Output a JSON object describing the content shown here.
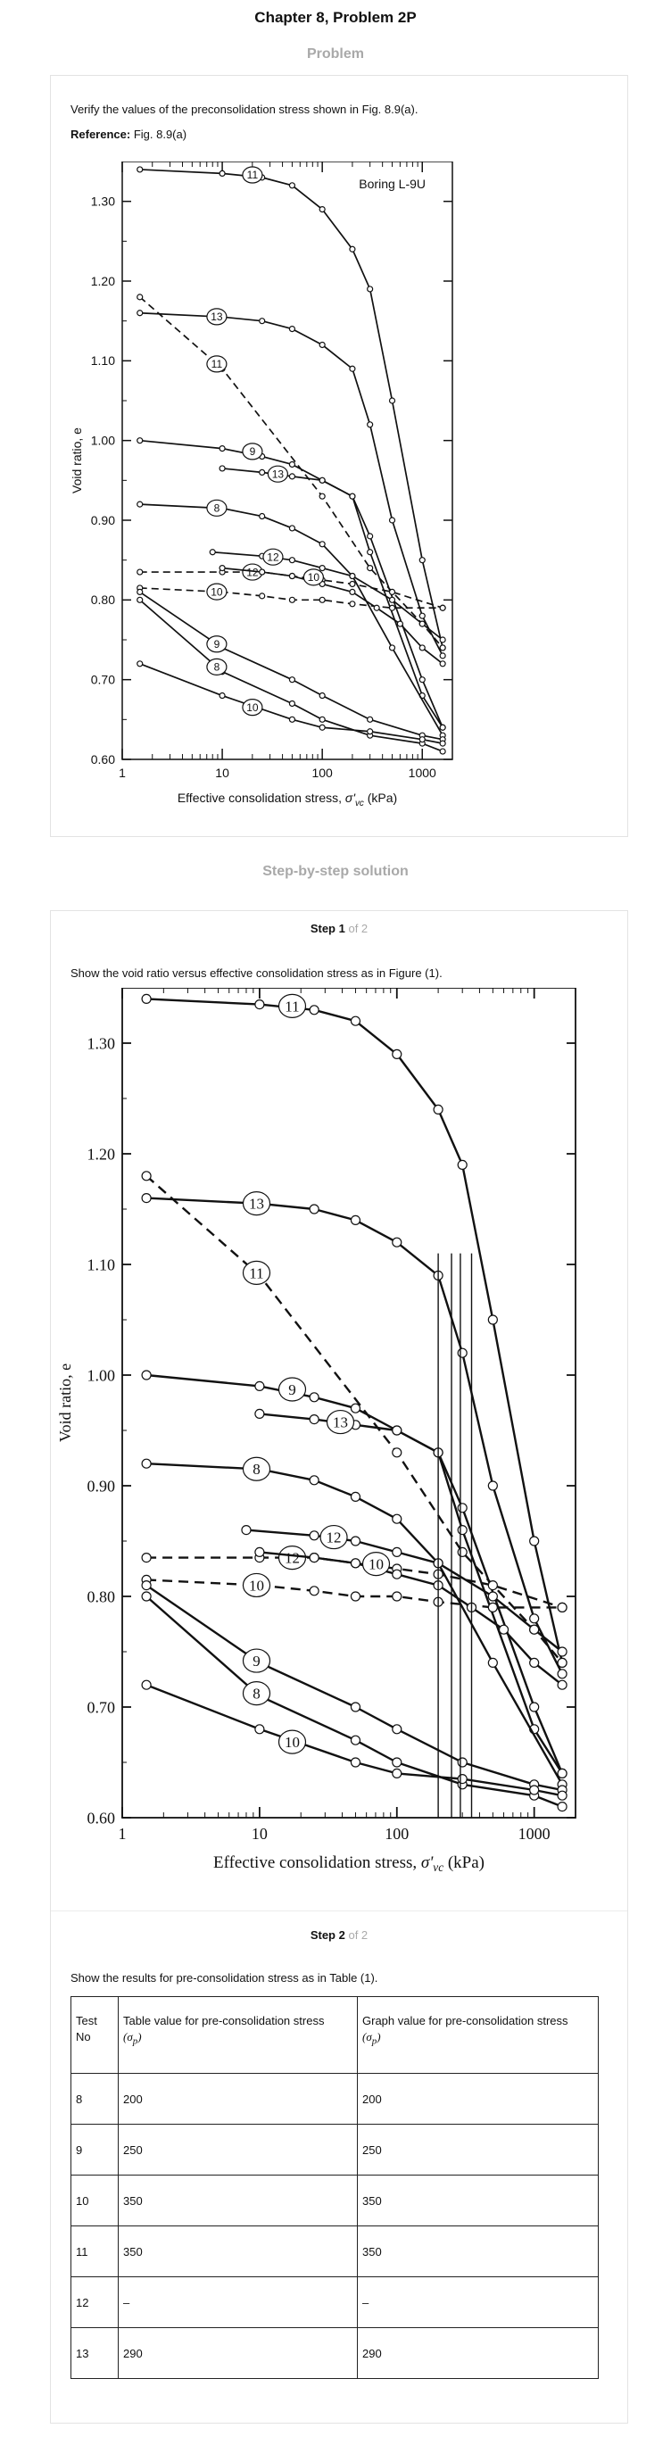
{
  "header": {
    "title": "Chapter 8, Problem 2P"
  },
  "problem": {
    "label": "Problem",
    "text": "Verify the values of the preconsolidation stress shown in Fig. 8.9(a).",
    "reference_label": "Reference:",
    "reference_value": "Fig. 8.9(a)"
  },
  "solution": {
    "label": "Step-by-step solution"
  },
  "step1": {
    "title": "Step 1",
    "of": "of 2",
    "text": "Show the void ratio versus effective consolidation stress as in Figure (1)."
  },
  "step2": {
    "title": "Step 2",
    "of": "of 2",
    "text": "Show the results for pre-consolidation stress as in Table (1)."
  },
  "figure_labels": {
    "chart_label": "Boring L-9U",
    "ylabel": "Void ratio, e",
    "xlabel_main": "Effective consolidation stress,",
    "xlabel_symbol": "σ'",
    "xlabel_sub": "vc",
    "xlabel_unit": "(kPa)",
    "yticks": [
      "0.60",
      "0.70",
      "0.80",
      "0.90",
      "1.00",
      "1.10",
      "1.20",
      "1.30"
    ],
    "xticks": [
      "1",
      "10",
      "100",
      "1000"
    ]
  },
  "table": {
    "headers": {
      "test_no": "Test No",
      "table_value": "Table value for pre-consolidation stress",
      "graph_value": "Graph value for pre-consolidation stress",
      "sigma": "σ",
      "sigma_sub": "p"
    },
    "rows": [
      {
        "test": "8",
        "table": "200",
        "graph": "200"
      },
      {
        "test": "9",
        "table": "250",
        "graph": "250"
      },
      {
        "test": "10",
        "table": "350",
        "graph": "350"
      },
      {
        "test": "11",
        "table": "350",
        "graph": "350"
      },
      {
        "test": "12",
        "table": "–",
        "graph": "–"
      },
      {
        "test": "13",
        "table": "290",
        "graph": "290"
      }
    ]
  },
  "chart_data": [
    {
      "type": "line",
      "title": "",
      "annotation": "Boring L-9U",
      "xlabel": "Effective consolidation stress, σ'vc (kPa)",
      "ylabel": "Void ratio, e",
      "xscale": "log",
      "xlim": [
        1,
        2000
      ],
      "ylim": [
        0.6,
        1.35
      ],
      "grid": false,
      "series": [
        {
          "name": "11",
          "style": "solid",
          "x": [
            1.5,
            10,
            25,
            50,
            100,
            200,
            300,
            500,
            1000,
            1600
          ],
          "y": [
            1.34,
            1.335,
            1.33,
            1.32,
            1.29,
            1.24,
            1.19,
            1.05,
            0.85,
            0.74
          ]
        },
        {
          "name": "13",
          "style": "solid",
          "x": [
            1.5,
            10,
            25,
            50,
            100,
            200,
            300,
            500,
            1000,
            1600
          ],
          "y": [
            1.16,
            1.155,
            1.15,
            1.14,
            1.12,
            1.09,
            1.02,
            0.9,
            0.78,
            0.73
          ]
        },
        {
          "name": "11",
          "style": "dashed",
          "x": [
            1.5,
            10,
            100,
            300,
            1000,
            1600
          ],
          "y": [
            1.18,
            1.09,
            0.93,
            0.84,
            0.77,
            0.74
          ]
        },
        {
          "name": "9",
          "style": "solid",
          "x": [
            1.5,
            10,
            25,
            50,
            100,
            200,
            300,
            1000,
            1600
          ],
          "y": [
            1.0,
            0.99,
            0.98,
            0.97,
            0.95,
            0.93,
            0.86,
            0.68,
            0.64
          ]
        },
        {
          "name": "13",
          "style": "solid",
          "x": [
            10,
            25,
            50,
            100,
            200,
            300,
            1000,
            1600
          ],
          "y": [
            0.965,
            0.96,
            0.955,
            0.95,
            0.93,
            0.88,
            0.7,
            0.64
          ]
        },
        {
          "name": "8",
          "style": "solid",
          "x": [
            1.5,
            10,
            25,
            50,
            100,
            200,
            500,
            1600
          ],
          "y": [
            0.92,
            0.915,
            0.905,
            0.89,
            0.87,
            0.83,
            0.74,
            0.63
          ]
        },
        {
          "name": "12",
          "style": "dashed",
          "x": [
            1.5,
            10,
            25,
            50,
            100,
            200,
            500,
            1600
          ],
          "y": [
            0.835,
            0.835,
            0.835,
            0.83,
            0.825,
            0.82,
            0.81,
            0.79
          ]
        },
        {
          "name": "12",
          "style": "solid",
          "x": [
            8,
            25,
            50,
            100,
            200,
            500,
            1000,
            1600
          ],
          "y": [
            0.86,
            0.855,
            0.85,
            0.84,
            0.83,
            0.8,
            0.77,
            0.75
          ]
        },
        {
          "name": "10",
          "style": "dashed",
          "x": [
            1.5,
            10,
            25,
            50,
            100,
            200,
            500,
            1600
          ],
          "y": [
            0.815,
            0.81,
            0.805,
            0.8,
            0.8,
            0.795,
            0.79,
            0.79
          ]
        },
        {
          "name": "10",
          "style": "solid",
          "x": [
            10,
            25,
            50,
            100,
            200,
            350,
            600,
            1000,
            1600
          ],
          "y": [
            0.84,
            0.835,
            0.83,
            0.82,
            0.81,
            0.79,
            0.77,
            0.74,
            0.72
          ]
        },
        {
          "name": "9",
          "style": "solid",
          "x": [
            1.5,
            10,
            50,
            100,
            300,
            1000,
            1600
          ],
          "y": [
            0.81,
            0.74,
            0.7,
            0.68,
            0.65,
            0.63,
            0.625
          ]
        },
        {
          "name": "8",
          "style": "solid",
          "x": [
            1.5,
            10,
            50,
            100,
            300,
            1000,
            1600
          ],
          "y": [
            0.8,
            0.71,
            0.67,
            0.65,
            0.63,
            0.62,
            0.61
          ]
        },
        {
          "name": "10",
          "style": "solid",
          "x": [
            1.5,
            10,
            50,
            100,
            300,
            1000,
            1600
          ],
          "y": [
            0.72,
            0.68,
            0.65,
            0.64,
            0.635,
            0.625,
            0.62
          ]
        }
      ]
    },
    {
      "type": "line",
      "title": "",
      "xlabel": "Effective consolidation stress, σ'vc (kPa)",
      "ylabel": "Void ratio, e",
      "xscale": "log",
      "xlim": [
        1,
        2000
      ],
      "ylim": [
        0.6,
        1.35
      ],
      "grid": false,
      "preconsolidation_lines_x": [
        200,
        250,
        290,
        350
      ],
      "series": "same as Fig. 8.9(a) above"
    }
  ]
}
